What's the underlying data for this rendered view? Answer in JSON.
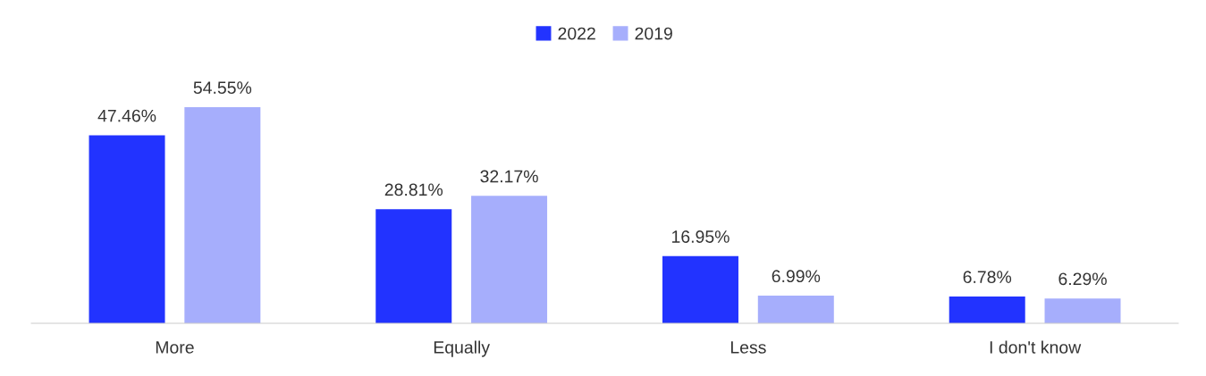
{
  "chart_data": {
    "type": "bar",
    "categories": [
      "More",
      "Equally",
      "Less",
      "I don't know"
    ],
    "series": [
      {
        "name": "2022",
        "color": "#2233ff",
        "values": [
          47.46,
          28.81,
          16.95,
          6.78
        ],
        "value_labels": [
          "47.46%",
          "28.81%",
          "16.95%",
          "6.78%"
        ]
      },
      {
        "name": "2019",
        "color": "#a6aefc",
        "values": [
          54.55,
          32.17,
          6.99,
          6.29
        ],
        "value_labels": [
          "54.55%",
          "32.17%",
          "6.99%",
          "6.29%"
        ]
      }
    ],
    "legend": "top",
    "grid": false,
    "tick_labels": "x"
  }
}
